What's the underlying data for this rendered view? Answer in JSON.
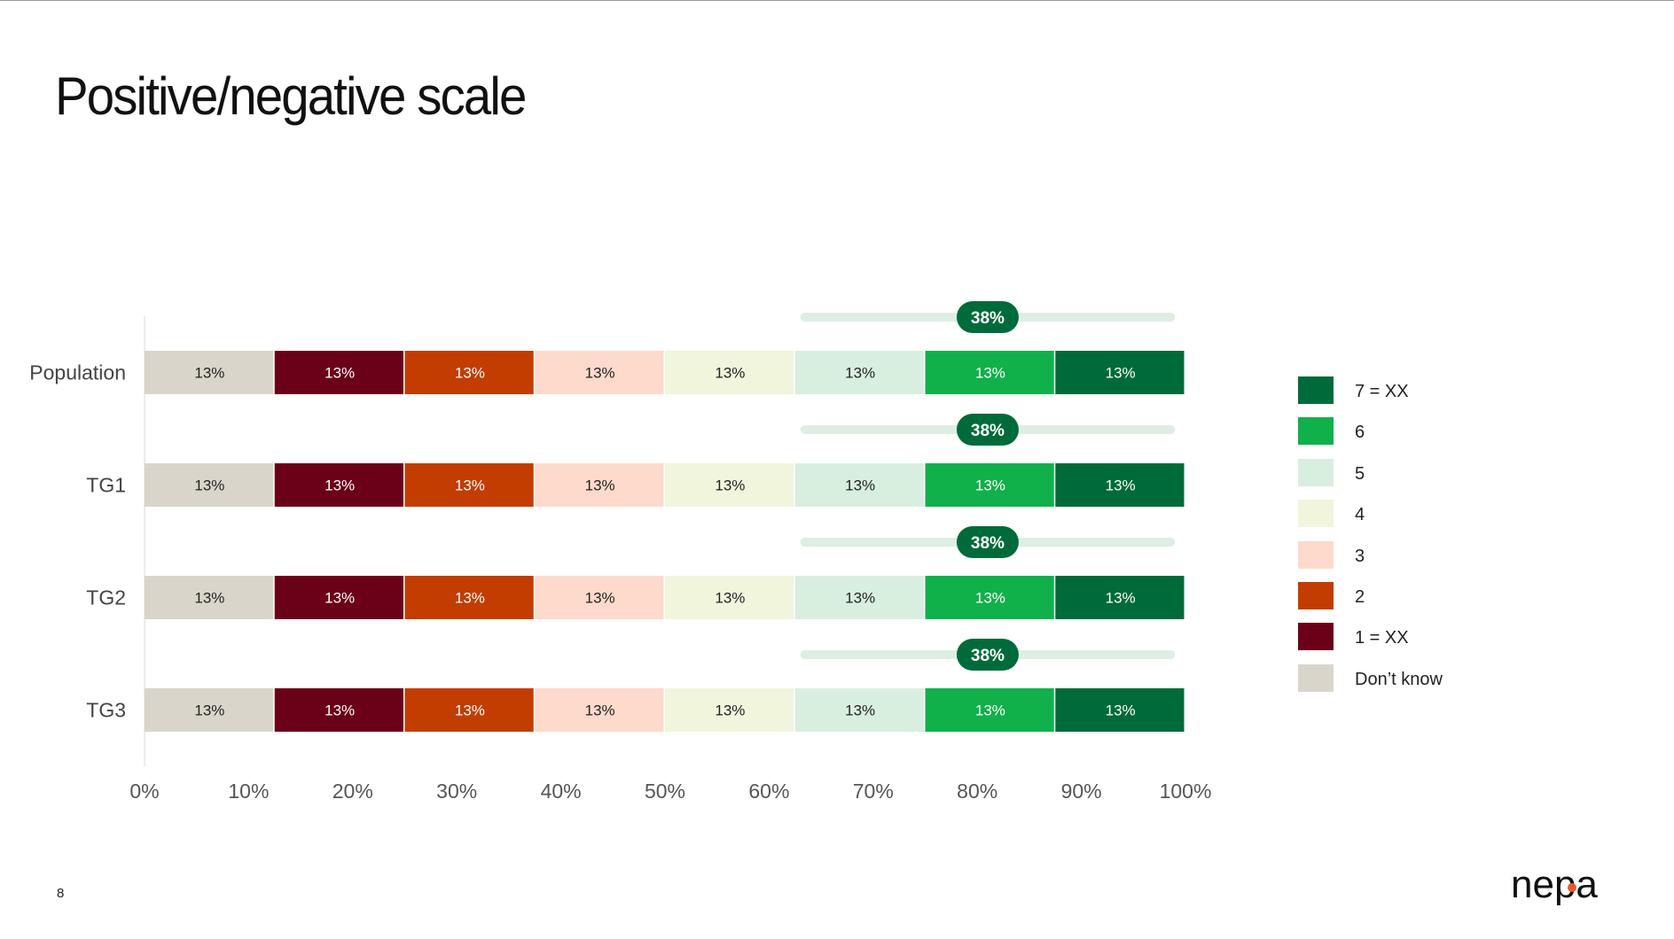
{
  "page": {
    "title": "Positive/negative scale",
    "page_number": "8"
  },
  "logo": {
    "text": "nepa",
    "dot_color": "#e8592a"
  },
  "chart_data": {
    "type": "bar",
    "orientation": "horizontal",
    "stacked": true,
    "categories": [
      "Population",
      "TG1",
      "TG2",
      "TG3"
    ],
    "series": [
      {
        "name": "Don’t know",
        "color": "#d9d5cb",
        "label_color": "#222222",
        "values": [
          12.5,
          12.5,
          12.5,
          12.5
        ],
        "data_labels": [
          "13%",
          "13%",
          "13%",
          "13%"
        ]
      },
      {
        "name": "1 = XX",
        "color": "#6b0019",
        "label_color": "#ffffff",
        "values": [
          12.5,
          12.5,
          12.5,
          12.5
        ],
        "data_labels": [
          "13%",
          "13%",
          "13%",
          "13%"
        ]
      },
      {
        "name": "2",
        "color": "#c33d00",
        "label_color": "#ffffff",
        "values": [
          12.5,
          12.5,
          12.5,
          12.5
        ],
        "data_labels": [
          "13%",
          "13%",
          "13%",
          "13%"
        ]
      },
      {
        "name": "3",
        "color": "#fddacb",
        "label_color": "#222222",
        "values": [
          12.5,
          12.5,
          12.5,
          12.5
        ],
        "data_labels": [
          "13%",
          "13%",
          "13%",
          "13%"
        ]
      },
      {
        "name": "4",
        "color": "#f0f5dc",
        "label_color": "#222222",
        "values": [
          12.5,
          12.5,
          12.5,
          12.5
        ],
        "data_labels": [
          "13%",
          "13%",
          "13%",
          "13%"
        ]
      },
      {
        "name": "5",
        "color": "#d8efdf",
        "label_color": "#222222",
        "values": [
          12.5,
          12.5,
          12.5,
          12.5
        ],
        "data_labels": [
          "13%",
          "13%",
          "13%",
          "13%"
        ]
      },
      {
        "name": "6",
        "color": "#10b04b",
        "label_color": "#ffffff",
        "values": [
          12.5,
          12.5,
          12.5,
          12.5
        ],
        "data_labels": [
          "13%",
          "13%",
          "13%",
          "13%"
        ]
      },
      {
        "name": "7 = XX",
        "color": "#006b3a",
        "label_color": "#ffffff",
        "values": [
          12.5,
          12.5,
          12.5,
          12.5
        ],
        "data_labels": [
          "13%",
          "13%",
          "13%",
          "13%"
        ]
      }
    ],
    "top_box": {
      "values": [
        "38%",
        "38%",
        "38%",
        "38%"
      ],
      "range": [
        63,
        99
      ],
      "badge_at": 81,
      "badge_color": "#006b3a",
      "track_color": "#dcefe2"
    },
    "xaxis": {
      "ticks": [
        0,
        10,
        20,
        30,
        40,
        50,
        60,
        70,
        80,
        90,
        100
      ],
      "tick_labels": [
        "0%",
        "10%",
        "20%",
        "30%",
        "40%",
        "50%",
        "60%",
        "70%",
        "80%",
        "90%",
        "100%"
      ],
      "xlim": [
        0,
        100
      ]
    },
    "legend": {
      "placement": "right",
      "order": [
        "7 = XX",
        "6",
        "5",
        "4",
        "3",
        "2",
        "1 = XX",
        "Don’t know"
      ]
    },
    "grid": false
  }
}
